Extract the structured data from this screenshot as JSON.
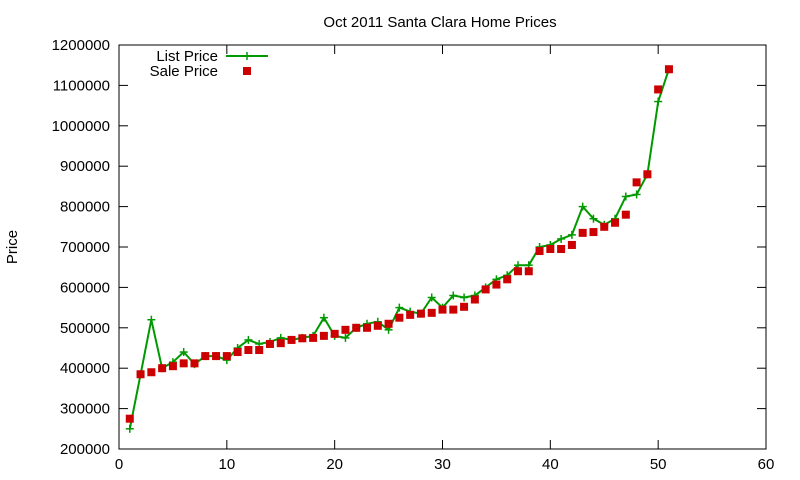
{
  "chart_data": {
    "type": "line",
    "title": "Oct 2011 Santa Clara Home Prices",
    "xlabel": "",
    "ylabel": "Price",
    "xlim": [
      0,
      60
    ],
    "ylim": [
      200000,
      1200000
    ],
    "xticks": [
      0,
      10,
      20,
      30,
      40,
      50,
      60
    ],
    "yticks": [
      200000,
      300000,
      400000,
      500000,
      600000,
      700000,
      800000,
      900000,
      1000000,
      1100000,
      1200000
    ],
    "grid": false,
    "legend_position": "top-left",
    "series": [
      {
        "name": "List Price",
        "style": "line-with-plus-markers",
        "color": "#009900",
        "x": [
          1,
          2,
          3,
          4,
          5,
          6,
          7,
          8,
          9,
          10,
          11,
          12,
          13,
          14,
          15,
          16,
          17,
          18,
          19,
          20,
          21,
          22,
          23,
          24,
          25,
          26,
          27,
          28,
          29,
          30,
          31,
          32,
          33,
          34,
          35,
          36,
          37,
          38,
          39,
          40,
          41,
          42,
          43,
          44,
          45,
          46,
          47,
          48,
          49,
          50,
          51
        ],
        "y": [
          250000,
          385000,
          520000,
          400000,
          415000,
          440000,
          410000,
          430000,
          430000,
          420000,
          450000,
          470000,
          460000,
          465000,
          475000,
          470000,
          475000,
          480000,
          525000,
          480000,
          475000,
          500000,
          510000,
          515000,
          495000,
          550000,
          540000,
          535000,
          575000,
          550000,
          580000,
          575000,
          580000,
          600000,
          620000,
          630000,
          655000,
          655000,
          700000,
          705000,
          720000,
          730000,
          800000,
          770000,
          755000,
          770000,
          825000,
          830000,
          880000,
          1060000,
          1140000
        ]
      },
      {
        "name": "Sale Price",
        "style": "square-markers",
        "color": "#cc0000",
        "x": [
          1,
          2,
          3,
          4,
          5,
          6,
          7,
          8,
          9,
          10,
          11,
          12,
          13,
          14,
          15,
          16,
          17,
          18,
          19,
          20,
          21,
          22,
          23,
          24,
          25,
          26,
          27,
          28,
          29,
          30,
          31,
          32,
          33,
          34,
          35,
          36,
          37,
          38,
          39,
          40,
          41,
          42,
          43,
          44,
          45,
          46,
          47,
          48,
          49,
          50,
          51
        ],
        "y": [
          275000,
          385000,
          390000,
          400000,
          405000,
          412000,
          412000,
          430000,
          430000,
          430000,
          440000,
          445000,
          445000,
          460000,
          462000,
          470000,
          474000,
          475000,
          480000,
          485000,
          495000,
          500000,
          500000,
          505000,
          510000,
          525000,
          532000,
          535000,
          537000,
          545000,
          545000,
          552000,
          570000,
          595000,
          607000,
          620000,
          640000,
          640000,
          690000,
          695000,
          695000,
          705000,
          735000,
          737000,
          750000,
          760000,
          780000,
          860000,
          880000,
          1090000,
          1140000
        ]
      }
    ]
  }
}
